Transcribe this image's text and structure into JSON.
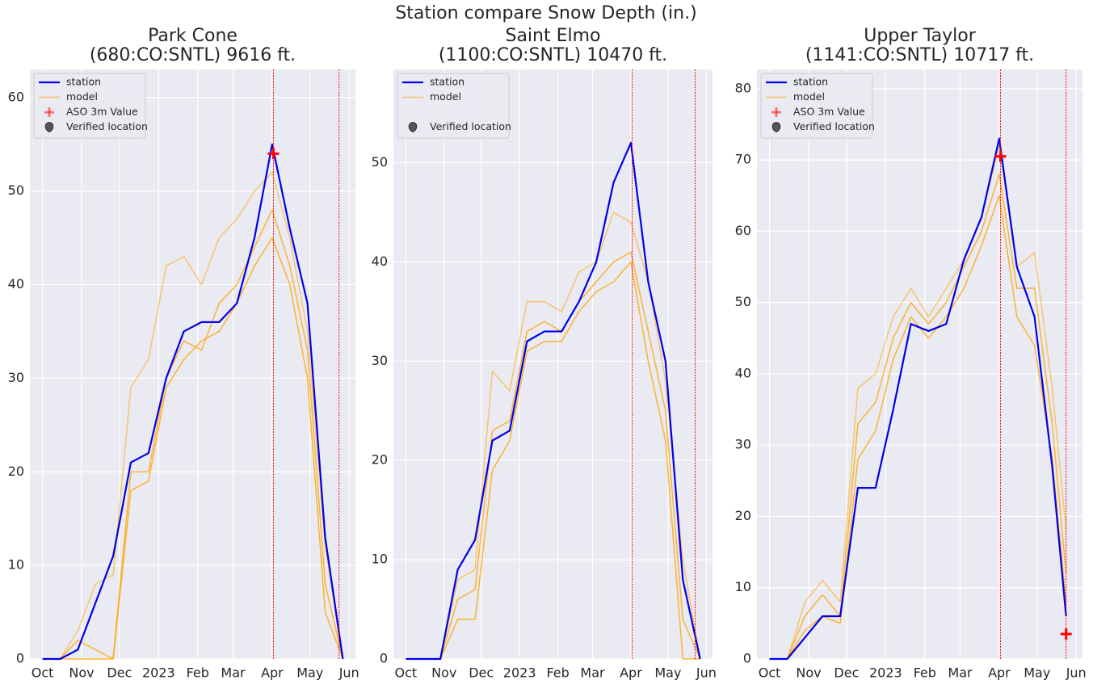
{
  "title": "Station compare Snow Depth (in.)",
  "chart_data": [
    {
      "type": "line",
      "title": "Park Cone",
      "subtitle": "(680:CO:SNTL) 9616 ft.",
      "x": [
        0,
        14,
        28,
        42,
        56,
        70,
        84,
        98,
        112,
        126,
        140,
        154,
        168,
        182,
        196,
        210,
        224,
        238
      ],
      "xlim": [
        -10,
        248
      ],
      "xticks": [
        {
          "value": 0,
          "label": "Oct"
        },
        {
          "value": 31,
          "label": "Nov"
        },
        {
          "value": 61,
          "label": "Dec"
        },
        {
          "value": 92,
          "label": "2023"
        },
        {
          "value": 123,
          "label": "Feb"
        },
        {
          "value": 151,
          "label": "Mar"
        },
        {
          "value": 182,
          "label": "Apr"
        },
        {
          "value": 212,
          "label": "May"
        },
        {
          "value": 243,
          "label": "Jun"
        }
      ],
      "ylim": [
        0,
        63
      ],
      "yticks": [
        0,
        10,
        20,
        30,
        40,
        50,
        60
      ],
      "grid": true,
      "station": {
        "name": "station",
        "color": "#0000ee",
        "values": [
          0,
          0,
          1,
          6,
          11,
          21,
          22,
          30,
          35,
          36,
          36,
          38,
          45,
          55,
          46,
          38,
          13,
          0
        ]
      },
      "model": {
        "name": "model",
        "color": "#ffa500",
        "runs": [
          [
            0,
            0,
            3,
            8,
            9,
            29,
            32,
            42,
            43,
            40,
            45,
            47,
            50,
            52,
            45,
            35,
            12,
            0
          ],
          [
            0,
            0,
            2,
            1,
            0,
            20,
            20,
            30,
            34,
            33,
            38,
            40,
            44,
            48,
            42,
            33,
            8,
            0
          ],
          [
            0,
            0,
            0,
            0,
            0,
            18,
            19,
            29,
            32,
            34,
            35,
            38,
            42,
            45,
            40,
            30,
            5,
            0
          ]
        ]
      },
      "aso": {
        "name": "ASO 3m Value",
        "color": "#ff0000",
        "x": [
          183
        ],
        "values": [
          54
        ]
      },
      "verified": {
        "name": "Verified location",
        "color": "#555555"
      },
      "vlines": [
        183,
        235
      ],
      "vline_color": "#ff0000"
    },
    {
      "type": "line",
      "title": "Saint Elmo",
      "subtitle": "(1100:CO:SNTL) 10470 ft.",
      "x": [
        0,
        14,
        28,
        42,
        56,
        70,
        84,
        98,
        112,
        126,
        140,
        154,
        168,
        182,
        196,
        210,
        224,
        238
      ],
      "xlim": [
        -10,
        248
      ],
      "xticks": [
        {
          "value": 0,
          "label": "Oct"
        },
        {
          "value": 31,
          "label": "Nov"
        },
        {
          "value": 61,
          "label": "Dec"
        },
        {
          "value": 92,
          "label": "2023"
        },
        {
          "value": 123,
          "label": "Feb"
        },
        {
          "value": 151,
          "label": "Mar"
        },
        {
          "value": 182,
          "label": "Apr"
        },
        {
          "value": 212,
          "label": "May"
        },
        {
          "value": 243,
          "label": "Jun"
        }
      ],
      "ylim": [
        0,
        59.4
      ],
      "yticks": [
        0,
        10,
        20,
        30,
        40,
        50
      ],
      "grid": true,
      "station": {
        "name": "station",
        "color": "#0000ee",
        "values": [
          0,
          0,
          0,
          9,
          12,
          22,
          23,
          32,
          33,
          33,
          36,
          40,
          48,
          52,
          38,
          30,
          8,
          0
        ]
      },
      "model": {
        "name": "model",
        "color": "#ffa500",
        "runs": [
          [
            0,
            0,
            0,
            8,
            9,
            29,
            27,
            36,
            36,
            35,
            39,
            40,
            45,
            44,
            38,
            28,
            10,
            0
          ],
          [
            0,
            0,
            0,
            6,
            7,
            23,
            24,
            33,
            34,
            33,
            36,
            38,
            40,
            41,
            33,
            25,
            4,
            0
          ],
          [
            0,
            0,
            0,
            4,
            4,
            19,
            22,
            31,
            32,
            32,
            35,
            37,
            38,
            40,
            30,
            22,
            0,
            0
          ]
        ]
      },
      "verified": {
        "name": "Verified location",
        "color": "#555555"
      },
      "vlines": [
        183,
        234
      ],
      "vline_color": "#ff0000"
    },
    {
      "type": "line",
      "title": "Upper Taylor",
      "subtitle": "(1141:CO:SNTL) 10717 ft.",
      "x": [
        0,
        14,
        28,
        42,
        56,
        70,
        84,
        98,
        112,
        126,
        140,
        154,
        168,
        182,
        196,
        210,
        224,
        235
      ],
      "xlim": [
        -10,
        248
      ],
      "xticks": [
        {
          "value": 0,
          "label": "Oct"
        },
        {
          "value": 31,
          "label": "Nov"
        },
        {
          "value": 61,
          "label": "Dec"
        },
        {
          "value": 92,
          "label": "2023"
        },
        {
          "value": 123,
          "label": "Feb"
        },
        {
          "value": 151,
          "label": "Mar"
        },
        {
          "value": 182,
          "label": "Apr"
        },
        {
          "value": 212,
          "label": "May"
        },
        {
          "value": 243,
          "label": "Jun"
        }
      ],
      "ylim": [
        0,
        82.7
      ],
      "yticks": [
        0,
        10,
        20,
        30,
        40,
        50,
        60,
        70,
        80
      ],
      "grid": true,
      "station": {
        "name": "station",
        "color": "#0000ee",
        "values": [
          0,
          0,
          3,
          6,
          6,
          24,
          24,
          35,
          47,
          46,
          47,
          56,
          62,
          73,
          55,
          48,
          27,
          6
        ]
      },
      "model": {
        "name": "model",
        "color": "#ffa500",
        "runs": [
          [
            0,
            0,
            8,
            11,
            8,
            38,
            40,
            48,
            52,
            48,
            52,
            56,
            62,
            72,
            55,
            57,
            38,
            18
          ],
          [
            0,
            0,
            6,
            9,
            6,
            33,
            36,
            45,
            50,
            47,
            50,
            55,
            60,
            68,
            52,
            52,
            33,
            12
          ],
          [
            0,
            0,
            4,
            6,
            5,
            28,
            32,
            42,
            48,
            45,
            48,
            52,
            58,
            65,
            48,
            44,
            28,
            8
          ]
        ]
      },
      "aso": {
        "name": "ASO 3m Value",
        "color": "#ff0000",
        "x": [
          183,
          235
        ],
        "values": [
          70.5,
          3.5
        ]
      },
      "verified": {
        "name": "Verified location",
        "color": "#555555"
      },
      "vlines": [
        183,
        235
      ],
      "vline_color": "#ff0000"
    }
  ]
}
